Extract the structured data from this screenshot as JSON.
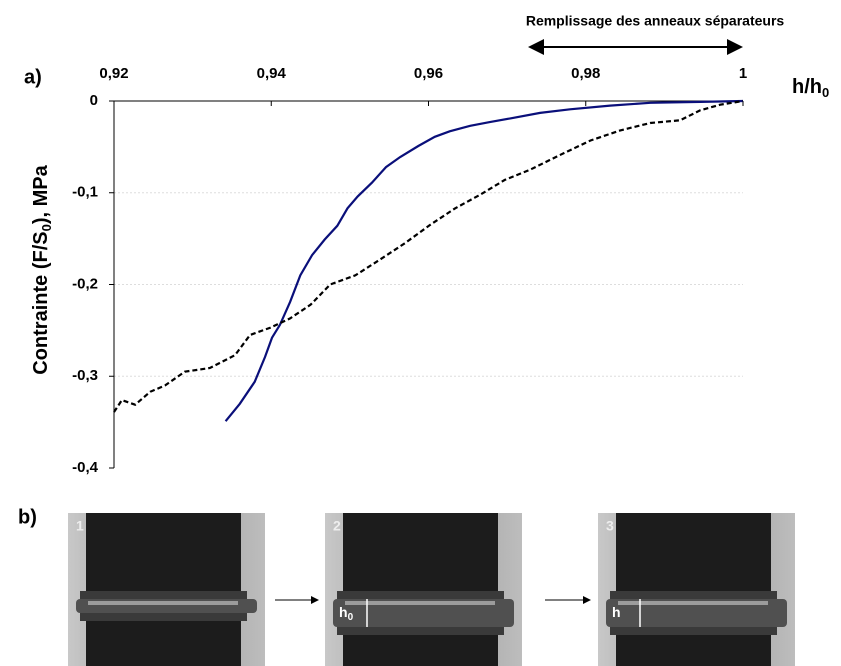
{
  "chart_data": {
    "type": "line",
    "panel_a_label": "a)",
    "panel_b_label": "b)",
    "annotation": "Remplissage des anneaux séparateurs",
    "x_label": "h/h",
    "x_label_sub": "0",
    "y_label": "Contrainte (F/S",
    "y_label_sub": "0",
    "y_label_end": "), MPa",
    "xlim": [
      0.92,
      1.0
    ],
    "xticks": [
      {
        "value": 0.92,
        "label": "0,92"
      },
      {
        "value": 0.94,
        "label": "0,94"
      },
      {
        "value": 0.96,
        "label": "0,96"
      },
      {
        "value": 0.98,
        "label": "0,98"
      },
      1
    ],
    "ylim": [
      -0.4,
      0
    ],
    "yticks": [
      0,
      {
        "value": -0.1,
        "label": "-0,1"
      },
      {
        "value": -0.2,
        "label": "-0,2"
      },
      {
        "value": -0.3,
        "label": "-0,3"
      },
      {
        "value": -0.4,
        "label": "-0,4"
      }
    ],
    "grid": true,
    "series": [
      {
        "color": "#0a0f7a",
        "dash": false,
        "x": [
          0.9342,
          0.936,
          0.9379,
          0.9392,
          0.9401,
          0.9411,
          0.9424,
          0.9437,
          0.9452,
          0.9468,
          0.9484,
          0.9497,
          0.951,
          0.9528,
          0.9546,
          0.9564,
          0.9587,
          0.9608,
          0.9627,
          0.9653,
          0.9678,
          0.9704,
          0.9742,
          0.978,
          0.9831,
          0.9882,
          0.9946,
          1.0
        ],
        "values": [
          -0.349,
          -0.33,
          -0.306,
          -0.279,
          -0.258,
          -0.244,
          -0.219,
          -0.19,
          -0.168,
          -0.151,
          -0.136,
          -0.117,
          -0.104,
          -0.089,
          -0.072,
          -0.061,
          -0.049,
          -0.039,
          -0.033,
          -0.027,
          -0.023,
          -0.019,
          -0.013,
          -0.009,
          -0.005,
          -0.002,
          -0.001,
          0
        ]
      },
      {
        "color": "#000000",
        "dash": true,
        "x": [
          0.92,
          0.921,
          0.9227,
          0.9246,
          0.9265,
          0.929,
          0.9322,
          0.9354,
          0.9373,
          0.9399,
          0.9424,
          0.945,
          0.9475,
          0.9507,
          0.9538,
          0.957,
          0.9602,
          0.9634,
          0.9666,
          0.9697,
          0.9729,
          0.9767,
          0.9806,
          0.9844,
          0.9882,
          0.992,
          0.9946,
          0.9971,
          1.0
        ],
        "values": [
          -0.339,
          -0.326,
          -0.331,
          -0.317,
          -0.31,
          -0.295,
          -0.291,
          -0.277,
          -0.255,
          -0.247,
          -0.237,
          -0.222,
          -0.2,
          -0.19,
          -0.173,
          -0.155,
          -0.135,
          -0.117,
          -0.102,
          -0.086,
          -0.075,
          -0.059,
          -0.043,
          -0.032,
          -0.024,
          -0.021,
          -0.01,
          -0.004,
          0
        ]
      }
    ],
    "photos": [
      {
        "number": "1"
      },
      {
        "number": "2",
        "height_label": "h",
        "height_sub": "0"
      },
      {
        "number": "3",
        "height_label": "h"
      }
    ]
  }
}
